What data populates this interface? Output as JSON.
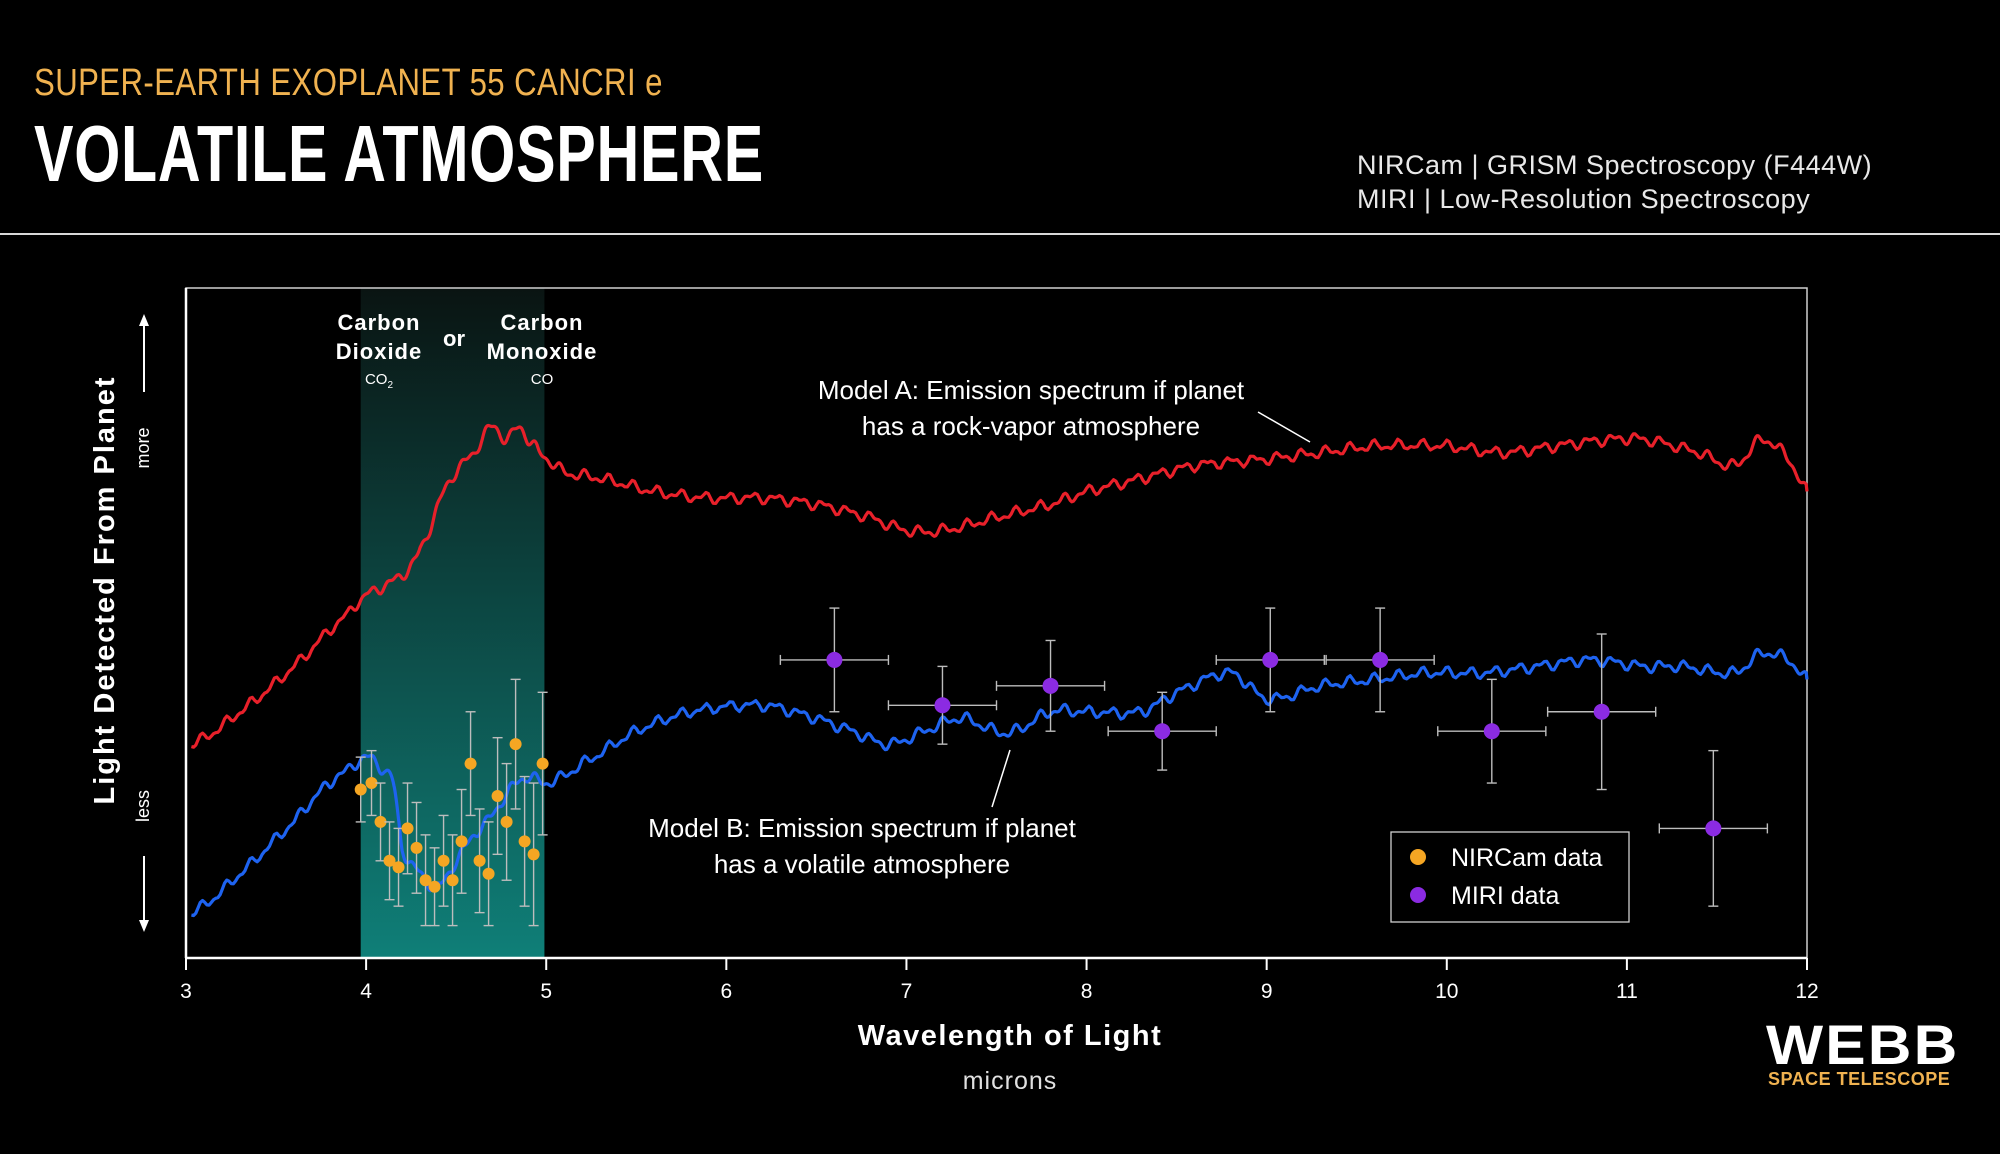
{
  "header": {
    "supertitle": "SUPER-EARTH EXOPLANET 55 CANCRI e",
    "title": "VOLATILE ATMOSPHERE",
    "instruments": [
      "NIRCam | GRISM Spectroscopy (F444W)",
      "MIRI | Low-Resolution Spectroscopy"
    ]
  },
  "logo": {
    "name": "WEBB",
    "subtitle": "SPACE TELESCOPE"
  },
  "colors": {
    "model_a": "#e8202a",
    "model_b": "#1e63f0",
    "nircam": "#f5a623",
    "miri": "#8b2be2",
    "band_top": "#0a1412",
    "band_bottom": "#0f7f78",
    "frame": "#cfcfcf"
  },
  "chart_data": {
    "type": "line",
    "xlabel": "Wavelength of Light",
    "xunit": "microns",
    "ylabel": "Light Detected From Planet",
    "y_more": "more",
    "y_less": "less",
    "xlim": [
      3,
      12
    ],
    "ylim": [
      0,
      1
    ],
    "xticks": [
      3,
      4,
      5,
      6,
      7,
      8,
      9,
      10,
      11,
      12
    ],
    "grid": false,
    "legend_position": "bottom-right",
    "band": {
      "x": [
        3.97,
        4.99
      ],
      "label_left": [
        "Carbon",
        "Dioxide"
      ],
      "formula_left": "CO",
      "formula_left_sub": "2",
      "connector": "or",
      "label_right": [
        "Carbon",
        "Monoxide"
      ],
      "formula_right": "CO"
    },
    "series": [
      {
        "name": "Model A",
        "annotation": [
          "Model A: Emission spectrum if planet",
          "has a rock-vapor atmosphere"
        ],
        "x": [
          3.03,
          3.3,
          3.6,
          3.9,
          4.0,
          4.2,
          4.3,
          4.45,
          4.6,
          4.7,
          4.78,
          4.85,
          4.9,
          4.96,
          5.1,
          5.3,
          5.6,
          5.9,
          6.2,
          6.5,
          6.8,
          7.0,
          7.2,
          7.5,
          7.8,
          8.0,
          8.3,
          8.6,
          9.0,
          9.3,
          9.6,
          10.0,
          10.3,
          10.6,
          10.9,
          11.1,
          11.4,
          11.6,
          11.75,
          11.9,
          12.0
        ],
        "y": [
          0.33,
          0.38,
          0.45,
          0.53,
          0.56,
          0.59,
          0.63,
          0.73,
          0.78,
          0.82,
          0.8,
          0.82,
          0.8,
          0.78,
          0.75,
          0.74,
          0.72,
          0.71,
          0.71,
          0.7,
          0.68,
          0.66,
          0.66,
          0.68,
          0.7,
          0.72,
          0.74,
          0.76,
          0.77,
          0.78,
          0.79,
          0.79,
          0.78,
          0.79,
          0.8,
          0.8,
          0.78,
          0.76,
          0.8,
          0.77,
          0.72
        ]
      },
      {
        "name": "Model B",
        "annotation": [
          "Model B: Emission spectrum if planet",
          "has a volatile atmosphere"
        ],
        "x": [
          3.03,
          3.3,
          3.6,
          3.8,
          3.9,
          4.0,
          4.1,
          4.15,
          4.2,
          4.3,
          4.4,
          4.5,
          4.6,
          4.7,
          4.8,
          4.9,
          5.0,
          5.2,
          5.5,
          5.8,
          6.2,
          6.5,
          6.7,
          6.9,
          7.1,
          7.3,
          7.5,
          7.6,
          7.8,
          8.0,
          8.3,
          8.5,
          8.8,
          9.0,
          9.3,
          9.6,
          9.9,
          10.2,
          10.5,
          10.8,
          11.1,
          11.3,
          11.6,
          11.75,
          11.9,
          12.0
        ],
        "y": [
          0.07,
          0.13,
          0.21,
          0.27,
          0.29,
          0.31,
          0.29,
          0.27,
          0.17,
          0.13,
          0.11,
          0.15,
          0.19,
          0.22,
          0.26,
          0.28,
          0.27,
          0.3,
          0.35,
          0.38,
          0.39,
          0.37,
          0.35,
          0.33,
          0.35,
          0.37,
          0.35,
          0.35,
          0.38,
          0.38,
          0.38,
          0.41,
          0.44,
          0.4,
          0.42,
          0.43,
          0.44,
          0.44,
          0.45,
          0.46,
          0.45,
          0.45,
          0.44,
          0.47,
          0.46,
          0.43
        ]
      }
    ],
    "data_points": [
      {
        "name": "NIRCam data",
        "x": [
          3.97,
          4.03,
          4.08,
          4.13,
          4.18,
          4.23,
          4.28,
          4.33,
          4.38,
          4.43,
          4.48,
          4.53,
          4.58,
          4.63,
          4.68,
          4.73,
          4.78,
          4.83,
          4.88,
          4.93,
          4.98
        ],
        "y": [
          0.26,
          0.27,
          0.21,
          0.15,
          0.14,
          0.2,
          0.17,
          0.12,
          0.11,
          0.15,
          0.12,
          0.18,
          0.3,
          0.15,
          0.13,
          0.25,
          0.21,
          0.33,
          0.18,
          0.16,
          0.3
        ],
        "err": [
          0.05,
          0.05,
          0.06,
          0.06,
          0.06,
          0.07,
          0.07,
          0.07,
          0.06,
          0.07,
          0.07,
          0.08,
          0.08,
          0.08,
          0.08,
          0.09,
          0.09,
          0.1,
          0.1,
          0.11,
          0.11
        ]
      },
      {
        "name": "MIRI data",
        "x": [
          6.6,
          7.2,
          7.8,
          8.42,
          9.02,
          9.63,
          10.25,
          10.86,
          11.48
        ],
        "y": [
          0.46,
          0.39,
          0.42,
          0.35,
          0.46,
          0.46,
          0.35,
          0.38,
          0.2
        ],
        "err": [
          0.08,
          0.06,
          0.07,
          0.06,
          0.08,
          0.08,
          0.08,
          0.12,
          0.12
        ],
        "xerr": [
          0.3,
          0.3,
          0.3,
          0.3,
          0.3,
          0.3,
          0.3,
          0.3,
          0.3
        ]
      }
    ]
  }
}
